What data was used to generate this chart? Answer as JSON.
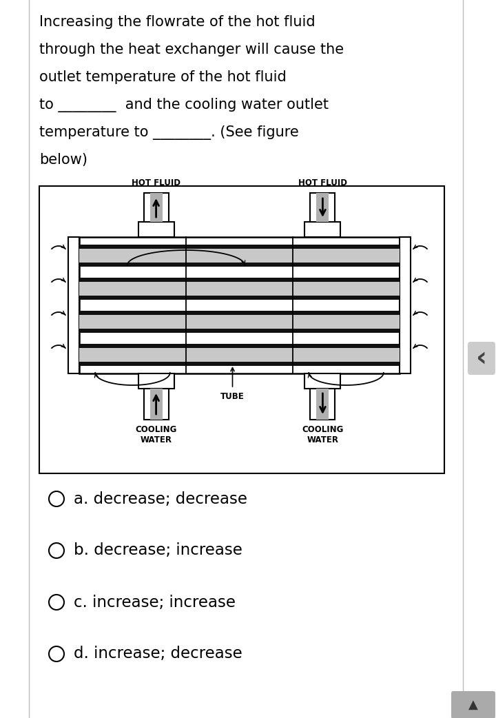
{
  "question_text_lines": [
    "Increasing the flowrate of the hot fluid",
    "through the heat exchanger will cause the",
    "outlet temperature of the hot fluid",
    "to ________  and the cooling water outlet",
    "temperature to ________. (See figure",
    "below)"
  ],
  "options": [
    "a. decrease; decrease",
    "b. decrease; increase",
    "c. increase; increase",
    "d. increase; decrease"
  ],
  "bg_color": "#ffffff",
  "text_color": "#000000",
  "tube_fill_color": "#c8c8c8",
  "dark_band_color": "#111111",
  "question_fontsize": 15.0,
  "option_fontsize": 16.5,
  "label_fontsize": 8.5
}
